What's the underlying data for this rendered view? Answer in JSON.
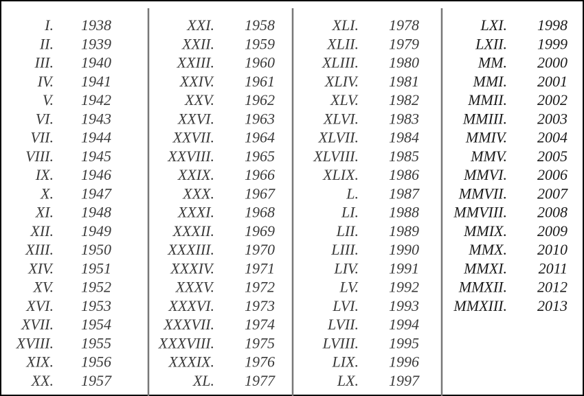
{
  "columns": [
    {
      "rows": [
        [
          "I.",
          1938
        ],
        [
          "II.",
          1939
        ],
        [
          "III.",
          1940
        ],
        [
          "IV.",
          1941
        ],
        [
          "V.",
          1942
        ],
        [
          "VI.",
          1943
        ],
        [
          "VII.",
          1944
        ],
        [
          "VIII.",
          1945
        ],
        [
          "IX.",
          1946
        ],
        [
          "X.",
          1947
        ],
        [
          "XI.",
          1948
        ],
        [
          "XII.",
          1949
        ],
        [
          "XIII.",
          1950
        ],
        [
          "XIV.",
          1951
        ],
        [
          "XV.",
          1952
        ],
        [
          "XVI.",
          1953
        ],
        [
          "XVII.",
          1954
        ],
        [
          "XVIII.",
          1955
        ],
        [
          "XIX.",
          1956
        ],
        [
          "XX.",
          1957
        ]
      ]
    },
    {
      "rows": [
        [
          "XXI.",
          1958
        ],
        [
          "XXII.",
          1959
        ],
        [
          "XXIII.",
          1960
        ],
        [
          "XXIV.",
          1961
        ],
        [
          "XXV.",
          1962
        ],
        [
          "XXVI.",
          1963
        ],
        [
          "XXVII.",
          1964
        ],
        [
          "XXVIII.",
          1965
        ],
        [
          "XXIX.",
          1966
        ],
        [
          "XXX.",
          1967
        ],
        [
          "XXXI.",
          1968
        ],
        [
          "XXXII.",
          1969
        ],
        [
          "XXXIII.",
          1970
        ],
        [
          "XXXIV.",
          1971
        ],
        [
          "XXXV.",
          1972
        ],
        [
          "XXXVI.",
          1973
        ],
        [
          "XXXVII.",
          1974
        ],
        [
          "XXXVIII.",
          1975
        ],
        [
          "XXXIX.",
          1976
        ],
        [
          "XL.",
          1977
        ]
      ]
    },
    {
      "rows": [
        [
          "XLI.",
          1978
        ],
        [
          "XLII.",
          1979
        ],
        [
          "XLIII.",
          1980
        ],
        [
          "XLIV.",
          1981
        ],
        [
          "XLV.",
          1982
        ],
        [
          "XLVI.",
          1983
        ],
        [
          "XLVII.",
          1984
        ],
        [
          "XLVIII.",
          1985
        ],
        [
          "XLIX.",
          1986
        ],
        [
          "L.",
          1987
        ],
        [
          "LI.",
          1988
        ],
        [
          "LII.",
          1989
        ],
        [
          "LIII.",
          1990
        ],
        [
          "LIV.",
          1991
        ],
        [
          "LV.",
          1992
        ],
        [
          "LVI.",
          1993
        ],
        [
          "LVII.",
          1994
        ],
        [
          "LVIII.",
          1995
        ],
        [
          "LIX.",
          1996
        ],
        [
          "LX.",
          1997
        ]
      ]
    },
    {
      "rows": [
        [
          "LXI.",
          1998
        ],
        [
          "LXII.",
          1999
        ],
        [
          "MM.",
          2000
        ],
        [
          "MMI.",
          2001
        ],
        [
          "MMII.",
          2002
        ],
        [
          "MMIII.",
          2003
        ],
        [
          "MMIV.",
          2004
        ],
        [
          "MMV.",
          2005
        ],
        [
          "MMVI.",
          2006
        ],
        [
          "MMVII.",
          2007
        ],
        [
          "MMVIII.",
          2008
        ],
        [
          "MMIX.",
          2009
        ],
        [
          "MMX.",
          2010
        ],
        [
          "MMXI.",
          2011
        ],
        [
          "MMXII.",
          2012
        ],
        [
          "MMXIII.",
          2013
        ]
      ]
    }
  ]
}
